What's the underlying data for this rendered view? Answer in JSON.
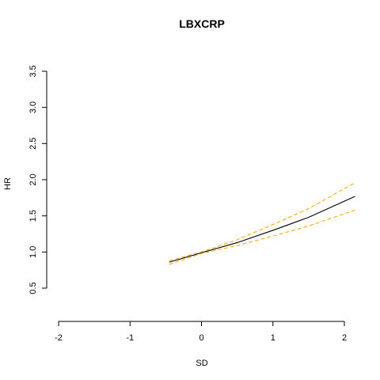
{
  "chart_data": {
    "type": "line",
    "title": "LBXCRP",
    "xlabel": "SD",
    "ylabel": "HR",
    "xlim": [
      -2,
      2
    ],
    "ylim": [
      0.5,
      3.5
    ],
    "x_ticks": [
      "-2",
      "-1",
      "0",
      "1",
      "2"
    ],
    "y_ticks": [
      "0.5",
      "1.0",
      "1.5",
      "2.0",
      "2.5",
      "3.0",
      "3.5"
    ],
    "grid": false,
    "legend": "none",
    "series": [
      {
        "role": "estimate",
        "color": "#000000",
        "style": "solid",
        "x": [
          -0.45,
          0.0,
          0.5,
          1.0,
          1.5,
          2.15
        ],
        "y": [
          0.86,
          0.99,
          1.13,
          1.3,
          1.48,
          1.77
        ]
      },
      {
        "role": "upper",
        "color": "#FFA500",
        "style": "dashed",
        "x": [
          -0.45,
          0.0,
          0.5,
          1.0,
          1.5,
          2.15
        ],
        "y": [
          0.88,
          1.0,
          1.17,
          1.38,
          1.6,
          1.96
        ]
      },
      {
        "role": "lower",
        "color": "#FFA500",
        "style": "dashed",
        "x": [
          -0.45,
          0.0,
          0.5,
          1.0,
          1.5,
          2.15
        ],
        "y": [
          0.83,
          0.98,
          1.09,
          1.22,
          1.36,
          1.58
        ]
      }
    ]
  }
}
